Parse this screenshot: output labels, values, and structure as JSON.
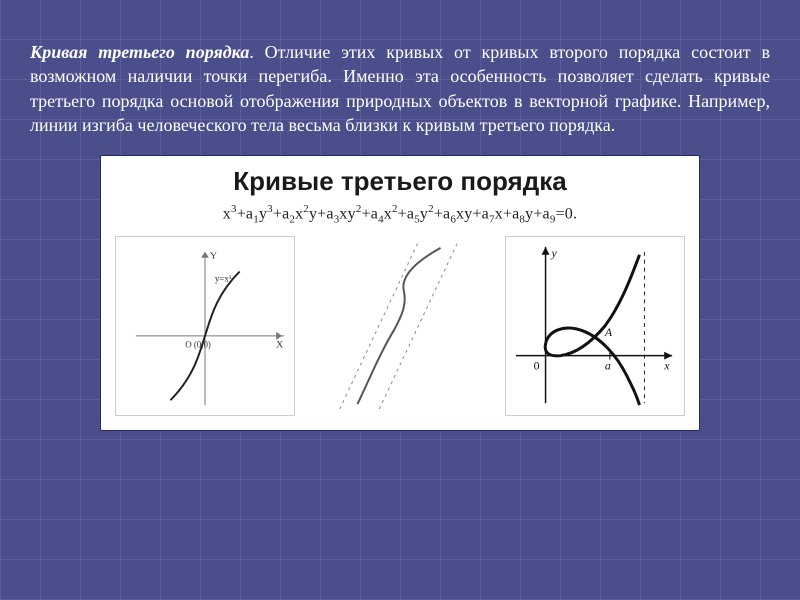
{
  "paragraph": {
    "term": "Кривая третьего порядка",
    "text": ". Отличие этих кривых от кривых второго порядка состоит в возможном наличии точки перегиба. Именно эта особенность позволяет сделать кривые третьего порядка основой отображения природных объектов в векторной графике. Например, линии изгиба человеческого тела весьма близки к кривым третьего порядка."
  },
  "panel": {
    "title": "Кривые третьего порядка",
    "equation_html": "x<sup>3</sup>+a<sub>1</sub>y<sup>3</sup>+a<sub>2</sub>x<sup>2</sup>y+a<sub>3</sub>xy<sup>2</sup>+a<sub>4</sub>x<sup>2</sup>+a<sub>5</sub>y<sup>2</sup>+a<sub>6</sub>xy+a<sub>7</sub>x+a<sub>8</sub>y+a<sub>9</sub>=0."
  },
  "plots": {
    "plot1": {
      "type": "cubic-inflection",
      "axis_color": "#777777",
      "curve_color": "#222222",
      "curve_width": 2,
      "labels": {
        "y_top": "Y",
        "x_right": "X",
        "origin": "O (0,0)",
        "curve": "y=x³"
      }
    },
    "plot2": {
      "type": "s-curve-with-asymptotes",
      "curve_color": "#555555",
      "asymptote_color": "#888888",
      "curve_width": 2
    },
    "plot3": {
      "type": "folium-loop",
      "axis_color": "#111111",
      "curve_color": "#111111",
      "curve_width": 3,
      "asymptote_color": "#222222",
      "labels": {
        "y": "y",
        "x": "x",
        "O": "0",
        "A": "A",
        "a": "a"
      }
    }
  },
  "colors": {
    "slide_bg": "#4a4f8c",
    "grid": "#5a5f9c",
    "text": "#ffffff",
    "panel_bg": "#ffffff",
    "panel_border": "#2a2a5a"
  },
  "typography": {
    "paragraph_fontsize": 18,
    "title_fontsize": 26,
    "equation_fontsize": 16
  }
}
